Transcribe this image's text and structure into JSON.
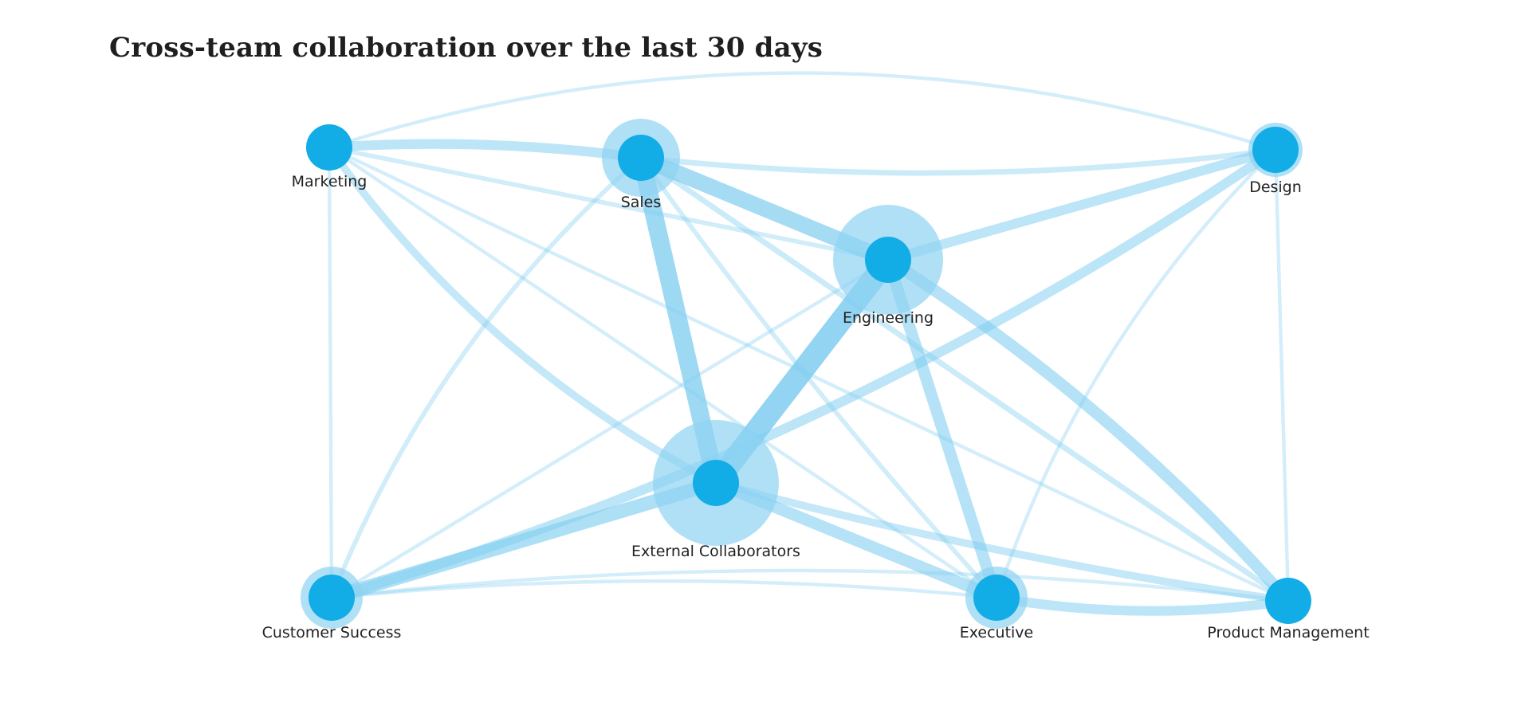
{
  "title": "Cross-team collaboration over the last 30 days",
  "colors": {
    "node": "#12ade6",
    "halo": "#8fd3f2",
    "edge": "#7fcdef"
  },
  "nodes": [
    {
      "id": "marketing",
      "label": "Marketing",
      "halo": 0
    },
    {
      "id": "sales",
      "label": "Sales",
      "halo": 2
    },
    {
      "id": "design",
      "label": "Design",
      "halo": 0.5
    },
    {
      "id": "engineering",
      "label": "Engineering",
      "halo": 4
    },
    {
      "id": "external",
      "label": "External Collaborators",
      "halo": 5
    },
    {
      "id": "customer_success",
      "label": "Customer Success",
      "halo": 1
    },
    {
      "id": "executive",
      "label": "Executive",
      "halo": 1
    },
    {
      "id": "product",
      "label": "Product Management",
      "halo": 0
    }
  ],
  "edges": [
    {
      "source": "external",
      "target": "engineering",
      "weight": 10
    },
    {
      "source": "sales",
      "target": "external",
      "weight": 8
    },
    {
      "source": "sales",
      "target": "engineering",
      "weight": 7
    },
    {
      "source": "engineering",
      "target": "executive",
      "weight": 5
    },
    {
      "source": "engineering",
      "target": "product",
      "weight": 5
    },
    {
      "source": "external",
      "target": "customer_success",
      "weight": 6
    },
    {
      "source": "external",
      "target": "executive",
      "weight": 5
    },
    {
      "source": "marketing",
      "target": "sales",
      "weight": 4
    },
    {
      "source": "marketing",
      "target": "external",
      "weight": 3
    },
    {
      "source": "engineering",
      "target": "design",
      "weight": 4
    },
    {
      "source": "customer_success",
      "target": "design",
      "weight": 4
    },
    {
      "source": "executive",
      "target": "product",
      "weight": 4
    },
    {
      "source": "external",
      "target": "product",
      "weight": 3
    },
    {
      "source": "sales",
      "target": "design",
      "weight": 2
    },
    {
      "source": "sales",
      "target": "product",
      "weight": 2
    },
    {
      "source": "sales",
      "target": "executive",
      "weight": 1.5
    },
    {
      "source": "sales",
      "target": "customer_success",
      "weight": 1.5
    },
    {
      "source": "marketing",
      "target": "engineering",
      "weight": 1.5
    },
    {
      "source": "marketing",
      "target": "executive",
      "weight": 1
    },
    {
      "source": "marketing",
      "target": "product",
      "weight": 1
    },
    {
      "source": "marketing",
      "target": "customer_success",
      "weight": 1
    },
    {
      "source": "marketing",
      "target": "design",
      "weight": 1
    },
    {
      "source": "design",
      "target": "executive",
      "weight": 1
    },
    {
      "source": "design",
      "target": "product",
      "weight": 1
    },
    {
      "source": "customer_success",
      "target": "executive",
      "weight": 1
    },
    {
      "source": "customer_success",
      "target": "product",
      "weight": 1
    },
    {
      "source": "customer_success",
      "target": "engineering",
      "weight": 1
    }
  ]
}
